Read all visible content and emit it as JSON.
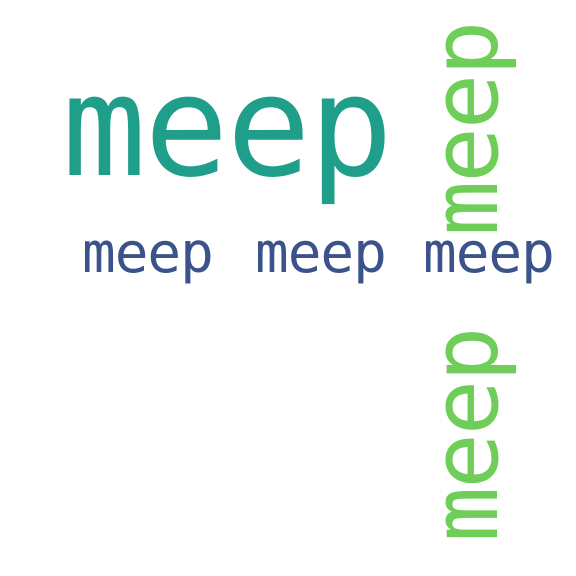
{
  "word_cloud": {
    "colors": {
      "background": "#ffffff",
      "teal": "#1f9e89",
      "navy": "#3b528b",
      "green": "#6ece58"
    },
    "words": [
      {
        "text": "meep",
        "color": "#1f9e89",
        "orientation": "horizontal",
        "size": "large"
      },
      {
        "text": "meep",
        "color": "#3b528b",
        "orientation": "horizontal",
        "size": "small"
      },
      {
        "text": "meep",
        "color": "#3b528b",
        "orientation": "horizontal",
        "size": "small"
      },
      {
        "text": "meep",
        "color": "#3b528b",
        "orientation": "horizontal",
        "size": "small"
      },
      {
        "text": "meep",
        "color": "#6ece58",
        "orientation": "vertical",
        "size": "medium"
      },
      {
        "text": "meep",
        "color": "#6ece58",
        "orientation": "vertical",
        "size": "medium"
      }
    ]
  }
}
